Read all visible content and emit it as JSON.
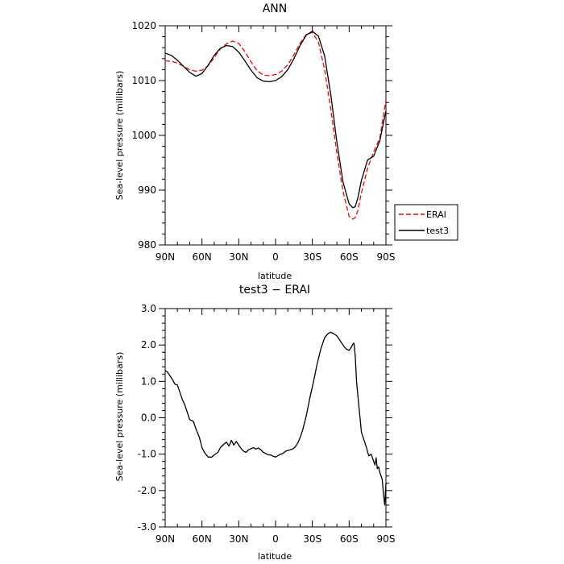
{
  "chart_data": [
    {
      "type": "line",
      "title": "ANN",
      "xlabel": "latitude",
      "ylabel": "Sea-level pressure (millibars)",
      "xlim": [
        90,
        -90
      ],
      "ylim": [
        980,
        1020
      ],
      "xticks": [
        90,
        60,
        30,
        0,
        -30,
        -60,
        -90
      ],
      "xticklabels": [
        "90N",
        "60N",
        "30N",
        "0",
        "30S",
        "60S",
        "90S"
      ],
      "yticks": [
        980,
        990,
        1000,
        1010,
        1020
      ],
      "yticklabels": [
        "980",
        "990",
        "1000",
        "1010",
        "1020"
      ],
      "grid": false,
      "legend_position": "outside-right",
      "series": [
        {
          "name": "ERAI",
          "color": "#ff0000",
          "style": "dashed",
          "x": [
            90,
            85,
            80,
            75,
            70,
            65,
            60,
            55,
            50,
            45,
            40,
            35,
            30,
            25,
            20,
            15,
            10,
            5,
            0,
            -5,
            -10,
            -15,
            -20,
            -25,
            -30,
            -35,
            -40,
            -45,
            -50,
            -55,
            -60,
            -63,
            -65,
            -67,
            -70,
            -75,
            -80,
            -85,
            -90
          ],
          "y": [
            1013.6,
            1013.5,
            1013.2,
            1012.6,
            1012.0,
            1011.7,
            1011.9,
            1012.7,
            1014.2,
            1015.8,
            1016.7,
            1017.2,
            1016.8,
            1015.3,
            1013.4,
            1011.8,
            1011.0,
            1010.9,
            1011.1,
            1011.7,
            1012.9,
            1014.7,
            1016.8,
            1018.4,
            1018.8,
            1017.0,
            1012.0,
            1004.8,
            996.8,
            989.8,
            985.2,
            984.7,
            985.0,
            986.2,
            989.5,
            994.0,
            997.0,
            999.5,
            1006.5
          ]
        },
        {
          "name": "test3",
          "color": "#000000",
          "style": "solid",
          "x": [
            90,
            85,
            80,
            75,
            70,
            65,
            60,
            55,
            50,
            45,
            40,
            35,
            30,
            25,
            20,
            15,
            10,
            5,
            0,
            -5,
            -10,
            -15,
            -20,
            -25,
            -30,
            -35,
            -40,
            -45,
            -50,
            -55,
            -60,
            -63,
            -65,
            -67,
            -70,
            -75,
            -80,
            -85,
            -90
          ],
          "y": [
            1015.0,
            1014.6,
            1013.7,
            1012.6,
            1011.5,
            1010.8,
            1011.3,
            1012.8,
            1014.6,
            1015.9,
            1016.4,
            1016.2,
            1015.2,
            1013.6,
            1011.9,
            1010.5,
            1009.9,
            1009.8,
            1010.0,
            1010.7,
            1012.0,
            1014.0,
            1016.4,
            1018.3,
            1019.0,
            1018.1,
            1014.5,
            1007.5,
            998.8,
            991.5,
            987.5,
            986.8,
            987.0,
            988.5,
            991.8,
            995.5,
            996.2,
            999.0,
            1004.5
          ]
        }
      ]
    },
    {
      "type": "line",
      "title": "test3 − ERAI",
      "xlabel": "latitude",
      "ylabel": "Sea-level pressure (millibars)",
      "xlim": [
        90,
        -90
      ],
      "ylim": [
        -3.0,
        3.0
      ],
      "xticks": [
        90,
        60,
        30,
        0,
        -30,
        -60,
        -90
      ],
      "xticklabels": [
        "90N",
        "60N",
        "30N",
        "0",
        "30S",
        "60S",
        "90S"
      ],
      "yticks": [
        -3,
        -2,
        -1,
        0,
        1,
        2,
        3
      ],
      "yticklabels": [
        "-3.0",
        "-2.0",
        "-1.0",
        "0.0",
        "1.0",
        "2.0",
        "3.0"
      ],
      "grid": false,
      "series": [
        {
          "color": "#000000",
          "style": "solid",
          "x": [
            90,
            88,
            86,
            84,
            82,
            80,
            78,
            76,
            74,
            72,
            70,
            67,
            65,
            62,
            60,
            58,
            55,
            52,
            50,
            47,
            45,
            42,
            40,
            38,
            36,
            34,
            32,
            30,
            28,
            26,
            24,
            22,
            20,
            18,
            16,
            14,
            12,
            10,
            8,
            6,
            4,
            2,
            0,
            -2,
            -4,
            -6,
            -8,
            -10,
            -12,
            -14,
            -16,
            -18,
            -20,
            -22,
            -25,
            -28,
            -31,
            -34,
            -37,
            -40,
            -43,
            -45,
            -47,
            -50,
            -52,
            -54,
            -56,
            -58,
            -60,
            -62,
            -63,
            -64,
            -65,
            -66,
            -68,
            -70,
            -72,
            -74,
            -76,
            -78,
            -80,
            -81,
            -82,
            -83,
            -84,
            -85,
            -86,
            -87,
            -88,
            -89,
            -90
          ],
          "y": [
            1.3,
            1.25,
            1.15,
            1.05,
            0.92,
            0.9,
            0.7,
            0.5,
            0.35,
            0.15,
            -0.05,
            -0.1,
            -0.3,
            -0.55,
            -0.82,
            -0.95,
            -1.08,
            -1.08,
            -1.02,
            -0.95,
            -0.82,
            -0.72,
            -0.67,
            -0.78,
            -0.62,
            -0.75,
            -0.65,
            -0.75,
            -0.85,
            -0.92,
            -0.95,
            -0.88,
            -0.85,
            -0.82,
            -0.86,
            -0.83,
            -0.88,
            -0.95,
            -0.98,
            -1.02,
            -1.02,
            -1.06,
            -1.08,
            -1.04,
            -1.0,
            -0.98,
            -0.92,
            -0.9,
            -0.88,
            -0.86,
            -0.8,
            -0.7,
            -0.55,
            -0.35,
            0.05,
            0.55,
            1.0,
            1.5,
            1.9,
            2.2,
            2.32,
            2.35,
            2.32,
            2.25,
            2.15,
            2.05,
            1.95,
            1.88,
            1.85,
            1.95,
            2.02,
            2.05,
            1.7,
            1.0,
            0.3,
            -0.4,
            -0.6,
            -0.8,
            -1.05,
            -1.0,
            -1.2,
            -1.3,
            -1.1,
            -1.4,
            -1.35,
            -1.5,
            -1.6,
            -1.7,
            -2.1,
            -2.4,
            -1.8
          ]
        }
      ]
    }
  ]
}
